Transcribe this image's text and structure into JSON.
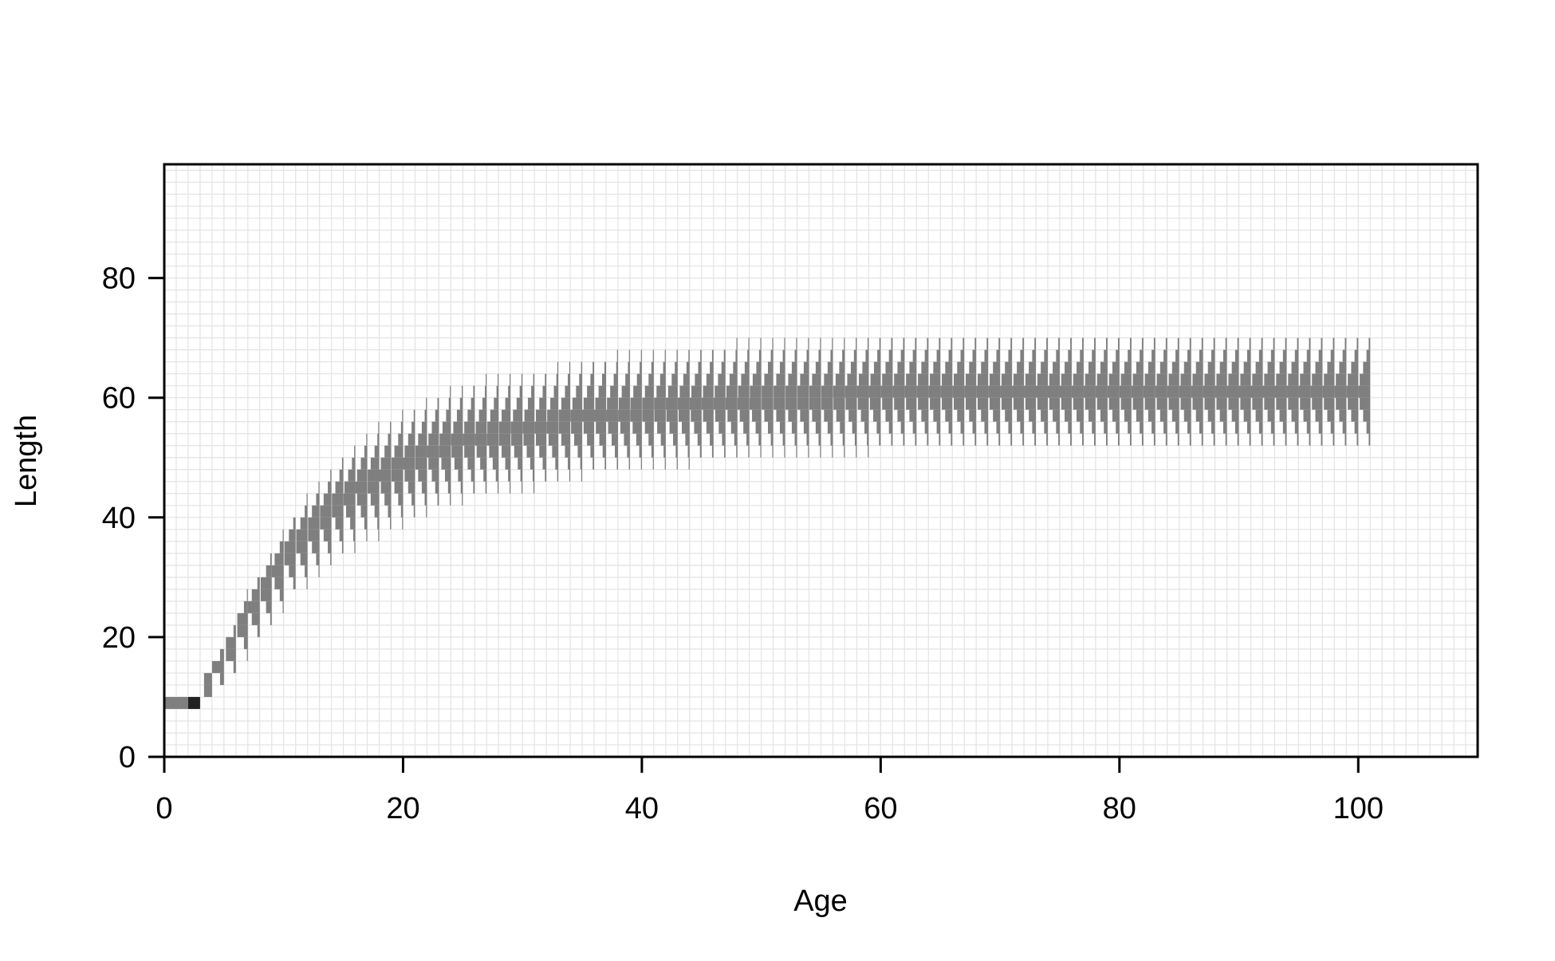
{
  "chart_data": {
    "type": "heatmap",
    "title": "",
    "xlabel": "Age",
    "ylabel": "Length",
    "xlim": [
      0,
      110
    ],
    "ylim": [
      0,
      99
    ],
    "x_ticks": [
      0,
      20,
      40,
      60,
      80,
      100
    ],
    "y_ticks": [
      0,
      20,
      40,
      60,
      80
    ],
    "x_tick_labels": [
      "0",
      "20",
      "40",
      "60",
      "80",
      "100"
    ],
    "y_tick_labels": [
      "0",
      "20",
      "40",
      "60",
      "80"
    ],
    "grid": true,
    "grid_x_step": 1,
    "grid_y_step": 2,
    "ages": [
      0,
      100
    ],
    "age_step": 1,
    "series": [
      {
        "description_free": true,
        "age": [
          0,
          1,
          2,
          3,
          4,
          5,
          6,
          7,
          8,
          9,
          10,
          12,
          14,
          16,
          18,
          20,
          22,
          25,
          28,
          31,
          35,
          40,
          45,
          50,
          55,
          60,
          70,
          80,
          90,
          100
        ],
        "mean_length": [
          9,
          9,
          9,
          12,
          15,
          18,
          22,
          25,
          28,
          31,
          34,
          38,
          42,
          45,
          47,
          49,
          51,
          53,
          54,
          55,
          57,
          58,
          59,
          60,
          60,
          61,
          61,
          61,
          61,
          61
        ],
        "length_sd": [
          0,
          0,
          0,
          1,
          1.2,
          1.5,
          1.8,
          2,
          2.2,
          2.4,
          2.5,
          2.8,
          3,
          3.2,
          3.3,
          3.4,
          3.5,
          3.5,
          3.5,
          3.5,
          3.5,
          3.5,
          3.5,
          3.5,
          3.5,
          3.5,
          3.5,
          3.5,
          3.5,
          3.5
        ]
      }
    ],
    "colors": {
      "cell_dark": "#222222",
      "cell_mid": "#7f7f7f",
      "grid": "#e3e3e3",
      "axis": "#000000"
    }
  }
}
